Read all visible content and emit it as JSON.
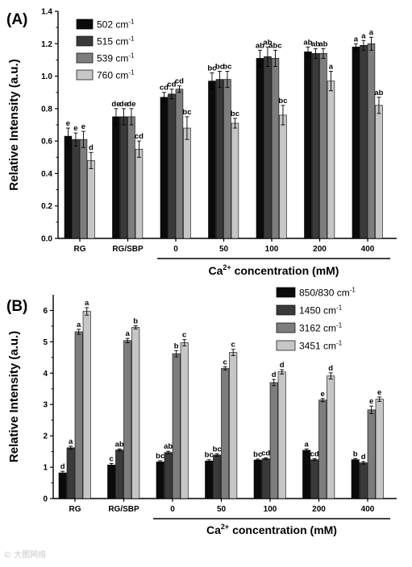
{
  "colors": {
    "black": "#0b0b0b",
    "dark_gray": "#3a3a3a",
    "mid_gray": "#7d7d7d",
    "light_gray": "#c6c6c6",
    "axis": "#000000"
  },
  "chart_data": [
    {
      "type": "bar",
      "panel_label": "(A)",
      "ylabel": "Relative Intensity (a.u.)",
      "xlabel_prefix": "Ca",
      "xlabel_sup": "2+",
      "xlabel_suffix": " concentration (mM)",
      "categories": [
        "RG",
        "RG/SBP",
        "0",
        "50",
        "100",
        "200",
        "400"
      ],
      "ylim": [
        0,
        1.4
      ],
      "yticks": [
        "0.0",
        "0.2",
        "0.4",
        "0.6",
        "0.8",
        "1.0",
        "1.2",
        "1.4"
      ],
      "legend_position": "top-left",
      "grid": false,
      "series": [
        {
          "name": "502 cm",
          "sup": "-1",
          "values": [
            0.63,
            0.75,
            0.87,
            0.97,
            1.11,
            1.15,
            1.18
          ],
          "errors": [
            0.05,
            0.05,
            0.03,
            0.05,
            0.05,
            0.03,
            0.02
          ],
          "labels": [
            "e",
            "de",
            "cd",
            "bc",
            "ab",
            "ab",
            "a"
          ]
        },
        {
          "name": "515 cm",
          "sup": "-1",
          "values": [
            0.61,
            0.75,
            0.89,
            0.98,
            1.12,
            1.14,
            1.19
          ],
          "errors": [
            0.04,
            0.05,
            0.03,
            0.05,
            0.06,
            0.03,
            0.03
          ],
          "labels": [
            "e",
            "de",
            "cd",
            "bc",
            "ab",
            "ab",
            "a"
          ]
        },
        {
          "name": "539 cm",
          "sup": "-1",
          "values": [
            0.61,
            0.75,
            0.92,
            0.98,
            1.11,
            1.14,
            1.2
          ],
          "errors": [
            0.05,
            0.05,
            0.02,
            0.05,
            0.05,
            0.03,
            0.04
          ],
          "labels": [
            "e",
            "de",
            "cd",
            "bc",
            "abc",
            "ab",
            "a"
          ]
        },
        {
          "name": "760 cm",
          "sup": "-1",
          "values": [
            0.48,
            0.55,
            0.68,
            0.71,
            0.76,
            0.97,
            0.82
          ],
          "errors": [
            0.05,
            0.05,
            0.07,
            0.03,
            0.06,
            0.06,
            0.05
          ],
          "labels": [
            "d",
            "cd",
            "bc",
            "bc",
            "bc",
            "a",
            "ab"
          ]
        }
      ]
    },
    {
      "type": "bar",
      "panel_label": "(B)",
      "ylabel": "Relative Intensity (a.u.)",
      "xlabel_prefix": "Ca",
      "xlabel_sup": "2+",
      "xlabel_suffix": " concentration (mM)",
      "categories": [
        "RG",
        "RG/SBP",
        "0",
        "50",
        "100",
        "200",
        "400"
      ],
      "ylim": [
        0,
        6.5
      ],
      "yticks": [
        "0",
        "1",
        "2",
        "3",
        "4",
        "5",
        "6"
      ],
      "legend_position": "top-right",
      "grid": false,
      "series": [
        {
          "name": "850/830 cm",
          "sup": "-1",
          "values": [
            0.82,
            1.07,
            1.17,
            1.2,
            1.23,
            1.54,
            1.24
          ],
          "errors": [
            0.05,
            0.05,
            0.04,
            0.04,
            0.03,
            0.04,
            0.03
          ],
          "labels": [
            "d",
            "c",
            "bc",
            "bc",
            "bc",
            "a",
            "b"
          ]
        },
        {
          "name": "1450 cm",
          "sup": "-1",
          "values": [
            1.62,
            1.55,
            1.47,
            1.39,
            1.27,
            1.24,
            1.14
          ],
          "errors": [
            0.05,
            0.03,
            0.04,
            0.04,
            0.03,
            0.03,
            0.04
          ],
          "labels": [
            "a",
            "ab",
            "ab",
            "bc",
            "cd",
            "cd",
            "d"
          ]
        },
        {
          "name": "3162 cm",
          "sup": "-1",
          "values": [
            5.32,
            5.04,
            4.62,
            4.15,
            3.7,
            3.14,
            2.83
          ],
          "errors": [
            0.08,
            0.07,
            0.1,
            0.05,
            0.1,
            0.05,
            0.12
          ],
          "labels": [
            "a",
            "a",
            "b",
            "c",
            "d",
            "e",
            "e"
          ]
        },
        {
          "name": "3451 cm",
          "sup": "-1",
          "values": [
            5.97,
            5.46,
            4.97,
            4.66,
            4.04,
            3.91,
            3.17
          ],
          "errors": [
            0.12,
            0.05,
            0.1,
            0.1,
            0.07,
            0.1,
            0.07
          ],
          "labels": [
            "a",
            "b",
            "c",
            "c",
            "d",
            "d",
            "e"
          ]
        }
      ]
    }
  ],
  "watermark": "© 大图网络"
}
